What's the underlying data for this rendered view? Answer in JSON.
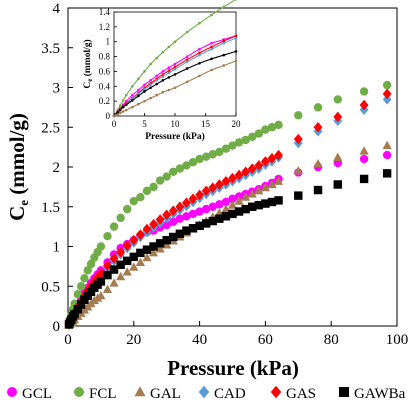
{
  "chart_data": {
    "type": "scatter",
    "main": {
      "xlabel": "Pressure (kPa)",
      "ylabel": "C",
      "ylabel_sub": "e",
      "ylabel_unit": " (mmol/g)",
      "xlim": [
        0,
        100
      ],
      "ylim": [
        0,
        4
      ],
      "xticks": [
        "0",
        "20",
        "40",
        "60",
        "80",
        "100"
      ],
      "yticks": [
        "0",
        "0.5",
        "1",
        "1.5",
        "2",
        "2.5",
        "3",
        "3.5",
        "4"
      ],
      "xtick_values": [
        0,
        20,
        40,
        60,
        80,
        100
      ],
      "ytick_values": [
        0,
        0.5,
        1,
        1.5,
        2,
        2.5,
        3,
        3.5,
        4
      ],
      "grid": false,
      "legend": "bottom"
    },
    "inset": {
      "xlabel": "Pressure (kPa)",
      "ylabel": "C",
      "ylabel_sub": "e",
      "ylabel_unit": " (mmol/g)",
      "xlim": [
        0,
        20
      ],
      "ylim": [
        0,
        1.4
      ],
      "xticks": [
        "0",
        "5",
        "10",
        "15",
        "20"
      ],
      "yticks": [
        "0",
        "0.2",
        "0.4",
        "0.6",
        "0.8",
        "1",
        "1.2",
        "1.4"
      ],
      "xtick_values": [
        0,
        5,
        10,
        15,
        20
      ],
      "ytick_values": [
        0,
        0.2,
        0.4,
        0.6,
        0.8,
        1.0,
        1.2,
        1.4
      ],
      "grid": false,
      "series_names": [
        "FCL",
        "GCL",
        "GAS",
        "CAD",
        "GAWBa",
        "GAL"
      ]
    },
    "series": [
      {
        "name": "GCL",
        "color": "#ff00ff",
        "marker": "circle",
        "x": [
          0.3,
          0.6,
          1,
          1.5,
          2,
          3,
          4,
          5,
          6,
          7,
          8,
          9,
          10,
          12,
          14,
          16,
          18,
          20,
          22,
          24,
          26,
          28,
          30,
          32,
          34,
          36,
          38,
          40,
          42,
          44,
          46,
          48,
          50,
          52,
          54,
          56,
          58,
          60,
          62,
          64,
          70,
          76,
          82,
          90,
          97
        ],
        "y": [
          0.02,
          0.06,
          0.1,
          0.15,
          0.2,
          0.28,
          0.35,
          0.42,
          0.48,
          0.54,
          0.6,
          0.65,
          0.7,
          0.8,
          0.9,
          0.98,
          1.03,
          1.08,
          1.14,
          1.18,
          1.2,
          1.24,
          1.27,
          1.31,
          1.35,
          1.38,
          1.41,
          1.44,
          1.47,
          1.5,
          1.53,
          1.56,
          1.6,
          1.63,
          1.66,
          1.69,
          1.72,
          1.76,
          1.8,
          1.85,
          1.93,
          2.0,
          2.05,
          2.1,
          2.15
        ]
      },
      {
        "name": "FCL",
        "color": "#70ad47",
        "marker": "circle",
        "x": [
          0.3,
          0.6,
          1,
          1.5,
          2,
          3,
          4,
          5,
          6,
          7,
          8,
          9,
          10,
          12,
          14,
          16,
          18,
          20,
          22,
          24,
          26,
          28,
          30,
          32,
          34,
          36,
          38,
          40,
          42,
          44,
          46,
          48,
          50,
          52,
          54,
          56,
          58,
          60,
          62,
          64,
          70,
          76,
          82,
          90,
          97
        ],
        "y": [
          0.03,
          0.08,
          0.14,
          0.21,
          0.28,
          0.4,
          0.5,
          0.6,
          0.7,
          0.78,
          0.86,
          0.93,
          1.0,
          1.13,
          1.25,
          1.36,
          1.47,
          1.57,
          1.62,
          1.7,
          1.75,
          1.83,
          1.88,
          1.94,
          1.98,
          2.02,
          2.06,
          2.1,
          2.13,
          2.16,
          2.19,
          2.23,
          2.27,
          2.31,
          2.34,
          2.38,
          2.42,
          2.47,
          2.5,
          2.53,
          2.65,
          2.75,
          2.85,
          2.95,
          3.03
        ]
      },
      {
        "name": "GAL",
        "color": "#a57c4f",
        "marker": "triangle",
        "x": [
          0.3,
          0.6,
          1,
          1.5,
          2,
          3,
          4,
          5,
          6,
          7,
          8,
          9,
          10,
          12,
          14,
          16,
          18,
          20,
          22,
          24,
          26,
          28,
          30,
          32,
          34,
          36,
          38,
          40,
          42,
          44,
          46,
          48,
          50,
          52,
          54,
          56,
          58,
          60,
          62,
          64,
          70,
          76,
          82,
          90,
          97
        ],
        "y": [
          0.01,
          0.02,
          0.04,
          0.06,
          0.08,
          0.12,
          0.16,
          0.2,
          0.24,
          0.28,
          0.32,
          0.35,
          0.38,
          0.46,
          0.54,
          0.62,
          0.68,
          0.74,
          0.8,
          0.86,
          0.92,
          0.97,
          1.02,
          1.07,
          1.12,
          1.17,
          1.22,
          1.27,
          1.32,
          1.37,
          1.42,
          1.47,
          1.52,
          1.57,
          1.62,
          1.66,
          1.7,
          1.74,
          1.78,
          1.82,
          1.95,
          2.04,
          2.12,
          2.2,
          2.27
        ]
      },
      {
        "name": "CAD",
        "color": "#5b9bd5",
        "marker": "diamond",
        "x": [
          0.3,
          0.6,
          1,
          1.5,
          2,
          3,
          4,
          5,
          6,
          7,
          8,
          9,
          10,
          12,
          14,
          16,
          18,
          20,
          22,
          24,
          26,
          28,
          30,
          32,
          34,
          36,
          38,
          40,
          42,
          44,
          46,
          48,
          50,
          52,
          54,
          56,
          58,
          60,
          62,
          64,
          70,
          76,
          82,
          90,
          97
        ],
        "y": [
          0.02,
          0.05,
          0.08,
          0.12,
          0.16,
          0.23,
          0.3,
          0.36,
          0.42,
          0.48,
          0.53,
          0.58,
          0.63,
          0.73,
          0.82,
          0.9,
          0.98,
          1.05,
          1.12,
          1.18,
          1.24,
          1.3,
          1.36,
          1.41,
          1.46,
          1.51,
          1.56,
          1.61,
          1.66,
          1.7,
          1.74,
          1.78,
          1.82,
          1.86,
          1.9,
          1.94,
          1.98,
          2.03,
          2.07,
          2.12,
          2.3,
          2.45,
          2.58,
          2.72,
          2.85
        ]
      },
      {
        "name": "GAS",
        "color": "#ff0000",
        "marker": "diamond",
        "x": [
          0.3,
          0.6,
          1,
          1.5,
          2,
          3,
          4,
          5,
          6,
          7,
          8,
          9,
          10,
          12,
          14,
          16,
          18,
          20,
          22,
          24,
          26,
          28,
          30,
          32,
          34,
          36,
          38,
          40,
          42,
          44,
          46,
          48,
          50,
          52,
          54,
          56,
          58,
          60,
          62,
          64,
          70,
          76,
          82,
          90,
          97
        ],
        "y": [
          0.02,
          0.05,
          0.09,
          0.13,
          0.17,
          0.24,
          0.31,
          0.38,
          0.44,
          0.5,
          0.56,
          0.61,
          0.66,
          0.76,
          0.85,
          0.93,
          1.01,
          1.08,
          1.15,
          1.22,
          1.28,
          1.34,
          1.4,
          1.45,
          1.5,
          1.55,
          1.6,
          1.65,
          1.7,
          1.74,
          1.78,
          1.82,
          1.86,
          1.9,
          1.94,
          1.98,
          2.02,
          2.07,
          2.11,
          2.15,
          2.35,
          2.5,
          2.63,
          2.78,
          2.92
        ]
      },
      {
        "name": "GAWBa",
        "color": "#000000",
        "marker": "square",
        "x": [
          0.3,
          0.6,
          1,
          1.5,
          2,
          3,
          4,
          5,
          6,
          7,
          8,
          9,
          10,
          12,
          14,
          16,
          18,
          20,
          22,
          24,
          26,
          28,
          30,
          32,
          34,
          36,
          38,
          40,
          42,
          44,
          46,
          48,
          50,
          52,
          54,
          56,
          58,
          60,
          62,
          64,
          70,
          76,
          82,
          90,
          97
        ],
        "y": [
          0.02,
          0.05,
          0.08,
          0.12,
          0.15,
          0.21,
          0.27,
          0.33,
          0.38,
          0.43,
          0.48,
          0.52,
          0.56,
          0.64,
          0.71,
          0.77,
          0.82,
          0.87,
          0.92,
          0.96,
          1.0,
          1.04,
          1.08,
          1.12,
          1.16,
          1.2,
          1.23,
          1.26,
          1.29,
          1.32,
          1.35,
          1.38,
          1.41,
          1.44,
          1.47,
          1.5,
          1.52,
          1.54,
          1.56,
          1.58,
          1.64,
          1.71,
          1.78,
          1.85,
          1.92
        ]
      }
    ]
  }
}
